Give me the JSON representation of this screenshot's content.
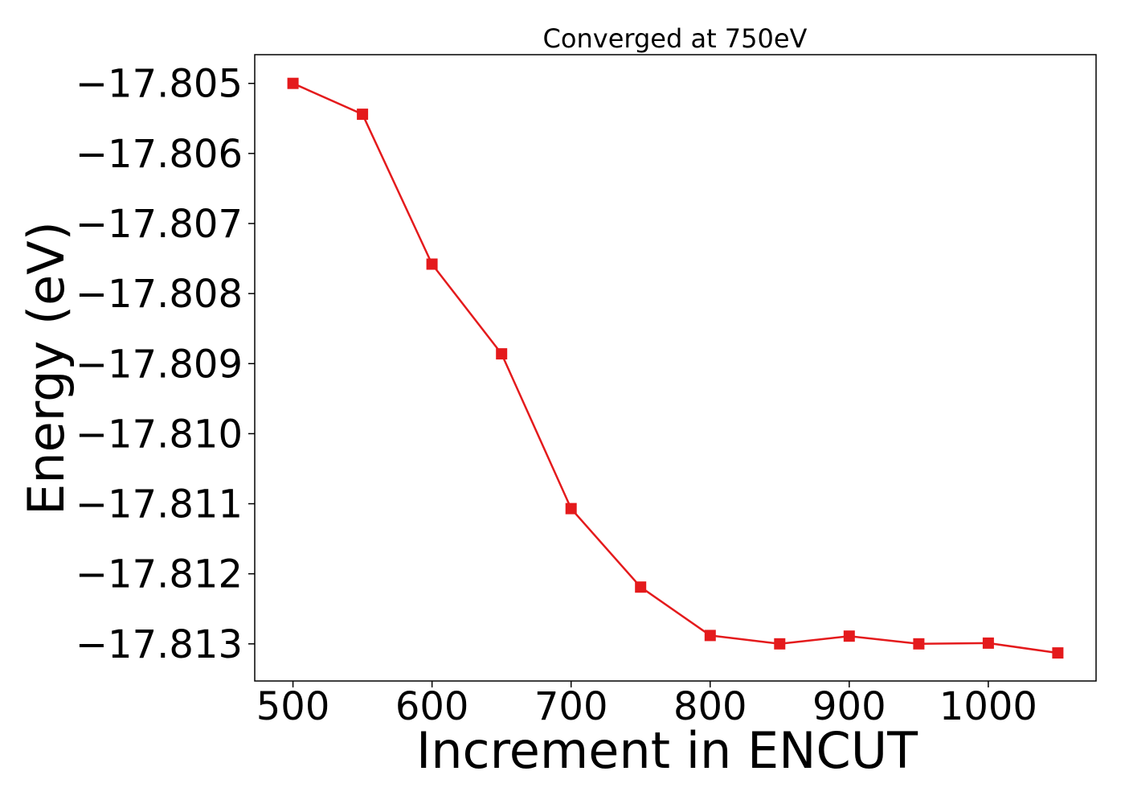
{
  "chart_data": {
    "type": "line",
    "title": "Converged at 750eV",
    "xlabel": "Increment in ENCUT",
    "ylabel": "Energy (eV)",
    "xlim": [
      472.5,
      1077.5
    ],
    "ylim": [
      -17.81353,
      -17.80459
    ],
    "xticks": [
      500,
      600,
      700,
      800,
      900,
      1000
    ],
    "xtick_labels": [
      "500",
      "600",
      "700",
      "800",
      "900",
      "1000"
    ],
    "yticks": [
      -17.805,
      -17.806,
      -17.807,
      -17.808,
      -17.809,
      -17.81,
      -17.811,
      -17.812,
      -17.813
    ],
    "ytick_labels": [
      "−17.805",
      "−17.806",
      "−17.807",
      "−17.808",
      "−17.809",
      "−17.810",
      "−17.811",
      "−17.812",
      "−17.813"
    ],
    "grid": false,
    "series": [
      {
        "color": "#e41a1c",
        "marker": "square",
        "x": [
          500,
          550,
          600,
          650,
          700,
          750,
          800,
          850,
          900,
          950,
          1000,
          1050
        ],
        "y": [
          -17.805,
          -17.80544,
          -17.80758,
          -17.80886,
          -17.81107,
          -17.81219,
          -17.81288,
          -17.813,
          -17.81289,
          -17.813,
          -17.81299,
          -17.81313
        ]
      }
    ]
  }
}
